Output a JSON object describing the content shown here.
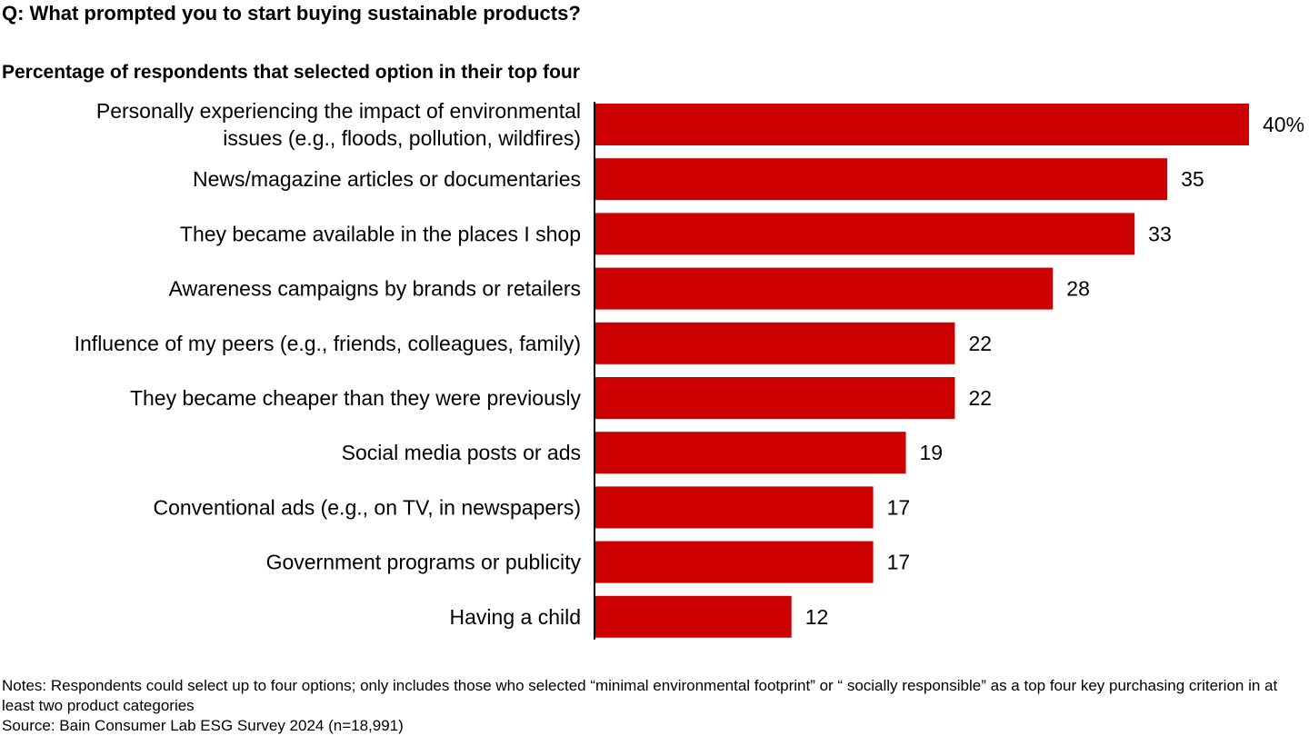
{
  "question": "Q: What prompted you to start buying sustainable products?",
  "subtitle": "Percentage of respondents that selected option in their top four",
  "notes": "Notes: Respondents could select up to four options; only includes those who selected “minimal environmental footprint” or “ socially responsible” as a top four key purchasing criterion in at least two product categories",
  "source": "Source: Bain Consumer Lab ESG Survey 2024 (n=18,991)",
  "colors": {
    "bar": "#cc0000",
    "axis": "#000000"
  },
  "chart_data": {
    "type": "bar",
    "orientation": "horizontal",
    "categories": [
      [
        "Personally experiencing the impact of environmental",
        "issues (e.g., floods, pollution, wildfires)"
      ],
      [
        "News/magazine articles or documentaries"
      ],
      [
        "They became available in the places I shop"
      ],
      [
        "Awareness campaigns by brands or retailers"
      ],
      [
        "Influence of my peers (e.g., friends, colleagues, family)"
      ],
      [
        "They became cheaper than they were previously"
      ],
      [
        "Social media posts or ads"
      ],
      [
        "Conventional ads (e.g., on TV, in newspapers)"
      ],
      [
        "Government programs or publicity"
      ],
      [
        "Having a child"
      ]
    ],
    "values": [
      40,
      35,
      33,
      28,
      22,
      22,
      19,
      17,
      17,
      12
    ],
    "value_labels": [
      "40%",
      "35",
      "33",
      "28",
      "22",
      "22",
      "19",
      "17",
      "17",
      "12"
    ],
    "title": "Percentage of respondents that selected option in their top four",
    "xlim": [
      0,
      40
    ],
    "grid": false,
    "legend": "none"
  }
}
